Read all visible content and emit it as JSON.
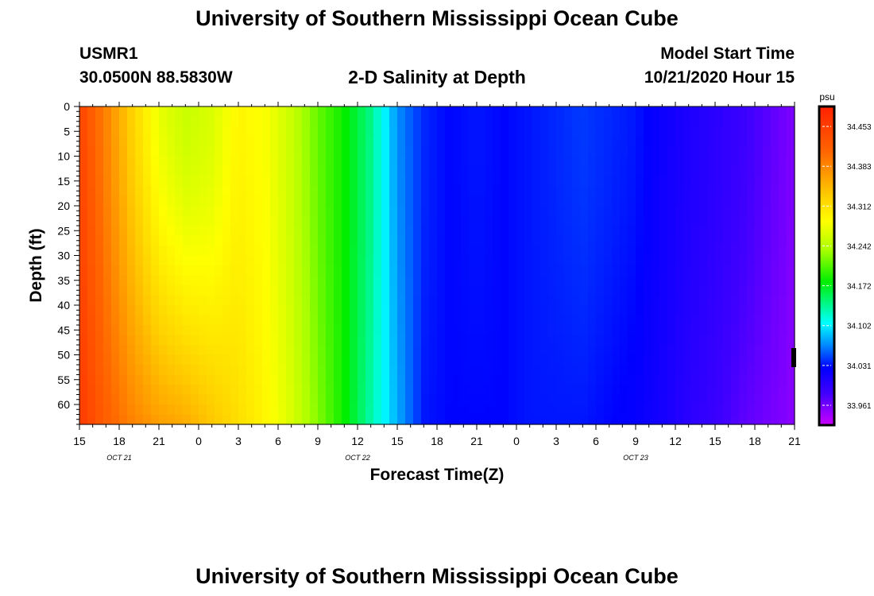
{
  "header": {
    "title": "University of Southern Mississippi Ocean Cube",
    "station": "USMR1",
    "coords": "30.0500N 88.5830W",
    "plot_title": "2-D Salinity at Depth",
    "model_start_label": "Model Start Time",
    "model_start_value": "10/21/2020 Hour 15"
  },
  "footer": {
    "title": "University of Southern Mississippi Ocean Cube"
  },
  "chart_data": {
    "type": "heatmap",
    "title": "2-D Salinity at Depth",
    "xlabel": "Forecast Time(Z)",
    "ylabel": "Depth (ft)",
    "x_ticks": [
      "15",
      "18",
      "21",
      "0",
      "3",
      "6",
      "9",
      "12",
      "15",
      "18",
      "21",
      "0",
      "3",
      "6",
      "9",
      "12",
      "15",
      "18",
      "21"
    ],
    "date_labels": [
      {
        "tick": 1,
        "label": "OCT 21"
      },
      {
        "tick": 7,
        "label": "OCT 22"
      },
      {
        "tick": 14,
        "label": "OCT 23"
      }
    ],
    "y_ticks": [
      0,
      5,
      10,
      15,
      20,
      25,
      30,
      35,
      40,
      45,
      50,
      55,
      60
    ],
    "ylim": [
      0,
      64
    ],
    "colorbar": {
      "unit": "psu",
      "ticks": [
        "34.453",
        "34.383",
        "34.312",
        "34.242",
        "34.172",
        "34.102",
        "34.031",
        "33.961"
      ],
      "range": [
        33.93,
        34.48
      ]
    },
    "surface_salinity": [
      34.44,
      34.38,
      34.32,
      34.27,
      34.25,
      34.26,
      34.29,
      34.28,
      34.25,
      34.21,
      34.18,
      34.14,
      34.07,
      34.04,
      34.03,
      34.035,
      34.03,
      34.035,
      34.04,
      34.045,
      34.04,
      34.035,
      34.02,
      34.01,
      34.0,
      33.99,
      33.975,
      33.96
    ],
    "bottom_salinity": [
      34.45,
      34.41,
      34.38,
      34.36,
      34.35,
      34.33,
      34.31,
      34.29,
      34.26,
      34.22,
      34.18,
      34.13,
      34.08,
      34.035,
      34.03,
      34.03,
      34.03,
      34.035,
      34.035,
      34.035,
      34.03,
      34.025,
      34.015,
      34.0,
      33.99,
      33.975,
      33.965,
      33.955
    ]
  }
}
